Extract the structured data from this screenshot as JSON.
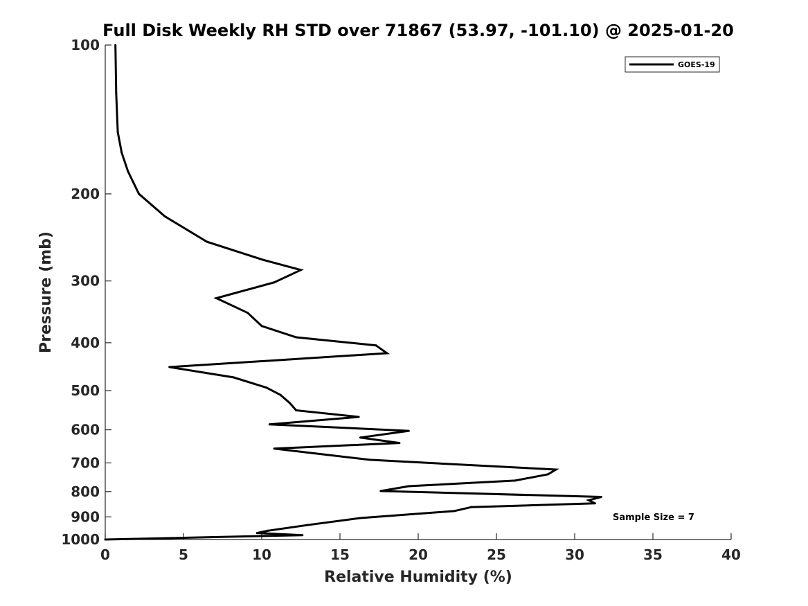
{
  "chart_data": {
    "type": "line",
    "title": "Full Disk Weekly RH STD over 71867 (53.97, -101.10) @ 2025-01-20",
    "xlabel": "Relative Humidity (%)",
    "ylabel": "Pressure (mb)",
    "xlim": [
      0,
      40
    ],
    "ylim": [
      1000,
      100
    ],
    "yscale": "log",
    "y_reversed": true,
    "grid": false,
    "legend_position": "top-right",
    "x_ticks": [
      0,
      5,
      10,
      15,
      20,
      25,
      30,
      35,
      40
    ],
    "x_tick_labels": [
      "0",
      "5",
      "10",
      "15",
      "20",
      "25",
      "30",
      "35",
      "40"
    ],
    "y_ticks": [
      100,
      200,
      300,
      400,
      500,
      600,
      700,
      800,
      900,
      1000
    ],
    "y_tick_labels": [
      "100",
      "200",
      "300",
      "400",
      "500",
      "600",
      "700",
      "800",
      "900",
      "1000"
    ],
    "series": [
      {
        "name": "GOES-19",
        "color": "#000000",
        "x": [
          0.65,
          0.7,
          0.8,
          1.05,
          1.45,
          2.15,
          3.8,
          6.5,
          10.1,
          12.5,
          10.8,
          7.1,
          9.1,
          10.0,
          12.2,
          17.3,
          18.0,
          4.1,
          8.2,
          10.3,
          11.2,
          11.8,
          12.2,
          16.2,
          10.5,
          19.4,
          16.3,
          18.8,
          10.8,
          16.9,
          28.8,
          28.3,
          26.2,
          19.4,
          17.6,
          31.7,
          30.9,
          31.3,
          23.4,
          22.3,
          16.3,
          12.9,
          10.4,
          9.7,
          12.6,
          0.0
        ],
        "y": [
          100,
          125,
          150,
          165,
          180,
          200,
          222,
          250,
          272,
          285,
          302,
          325,
          348,
          370,
          390,
          405,
          420,
          448,
          470,
          493,
          510,
          530,
          548,
          565,
          585,
          603,
          622,
          638,
          655,
          690,
          722,
          738,
          760,
          780,
          798,
          820,
          833,
          845,
          860,
          876,
          905,
          935,
          960,
          970,
          980,
          1000
        ]
      }
    ],
    "legend": [
      "GOES-19"
    ],
    "annotations": [
      {
        "text": "Sample Size = 7",
        "x": 32.5,
        "y": 905
      }
    ]
  }
}
